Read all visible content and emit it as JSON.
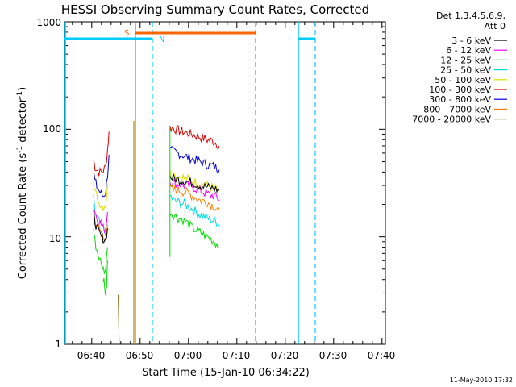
{
  "chart_data": {
    "type": "line",
    "title": "HESSI Observing Summary Count Rates, Corrected",
    "xlabel": "Start Time (15-Jan-10 06:34:22)",
    "ylabel_main": "Corrected Count Rate (s",
    "ylabel_sup1": "-1",
    "ylabel_mid": " detector",
    "ylabel_sup2": "-1",
    "ylabel_end": ")",
    "yscale": "log",
    "ylim": [
      1,
      1000
    ],
    "xlim": [
      "06:34:22",
      "07:40:40"
    ],
    "x_ticks": [
      "06:40",
      "06:50",
      "07:00",
      "07:10",
      "07:20",
      "07:30",
      "07:40"
    ],
    "y_ticks": [
      "1",
      "10",
      "100",
      "1000"
    ],
    "legend_header": [
      "Det 1,3,4,5,6,9,",
      "Att 0"
    ],
    "legend": [
      {
        "label": "3 - 6 keV",
        "color": "#000000"
      },
      {
        "label": "6 - 12 keV",
        "color": "#ff00ff"
      },
      {
        "label": "12 - 25 keV",
        "color": "#00dd00"
      },
      {
        "label": "25 - 50 keV",
        "color": "#00dddd"
      },
      {
        "label": "50 - 100 keV",
        "color": "#dddd00"
      },
      {
        "label": "100 - 300 keV",
        "color": "#dd0000"
      },
      {
        "label": "300 - 800 keV",
        "color": "#0000dd"
      },
      {
        "label": "800 - 7000 keV",
        "color": "#ff8000"
      },
      {
        "label": "7000 - 20000 keV",
        "color": "#806000"
      }
    ],
    "series": [
      {
        "color": "#dd0000",
        "seg1": [
          [
            6.0,
            52
          ],
          [
            6.3,
            45
          ],
          [
            6.7,
            42
          ],
          [
            7.1,
            40
          ],
          [
            7.6,
            40
          ],
          [
            8.0,
            41
          ],
          [
            8.5,
            45
          ],
          [
            8.9,
            65
          ],
          [
            9.2,
            95
          ]
        ],
        "seg2": [
          [
            21.8,
            104
          ],
          [
            22.5,
            102
          ],
          [
            23.5,
            98
          ],
          [
            25.0,
            93
          ],
          [
            26.5,
            89
          ],
          [
            28.0,
            85
          ],
          [
            29.5,
            80
          ],
          [
            31.0,
            77
          ],
          [
            32.0,
            70
          ]
        ]
      },
      {
        "color": "#0000dd",
        "seg1": [
          [
            6.0,
            40
          ],
          [
            6.3,
            33
          ],
          [
            6.7,
            29
          ],
          [
            7.1,
            27
          ],
          [
            7.6,
            25
          ],
          [
            8.0,
            24
          ],
          [
            8.5,
            26
          ],
          [
            8.9,
            38
          ],
          [
            9.2,
            58
          ]
        ],
        "seg2": [
          [
            21.8,
            64
          ],
          [
            22.5,
            62
          ],
          [
            23.5,
            60
          ],
          [
            25.0,
            56
          ],
          [
            26.5,
            53
          ],
          [
            28.0,
            50
          ],
          [
            29.5,
            47
          ],
          [
            31.0,
            45
          ],
          [
            32.0,
            42
          ]
        ]
      },
      {
        "color": "#dddd00",
        "seg1": [
          [
            6.0,
            34
          ],
          [
            6.3,
            27
          ],
          [
            6.7,
            23
          ],
          [
            7.1,
            21
          ],
          [
            7.6,
            20
          ],
          [
            8.0,
            19
          ],
          [
            8.5,
            20
          ],
          [
            8.9,
            30
          ]
        ],
        "seg2": [
          [
            21.8,
            40
          ],
          [
            22.5,
            38
          ],
          [
            23.5,
            37
          ],
          [
            25.0,
            35
          ],
          [
            26.5,
            33
          ],
          [
            28.0,
            31
          ],
          [
            29.5,
            30
          ],
          [
            31.0,
            28
          ],
          [
            32.0,
            27
          ]
        ]
      },
      {
        "color": "#00dddd",
        "seg1": [
          [
            6.0,
            22
          ],
          [
            6.3,
            17
          ],
          [
            6.7,
            15
          ],
          [
            7.1,
            14
          ],
          [
            7.6,
            13
          ],
          [
            8.0,
            12
          ],
          [
            8.5,
            11
          ],
          [
            8.9,
            16
          ]
        ],
        "seg2": [
          [
            21.8,
            24
          ],
          [
            22.5,
            22
          ],
          [
            23.5,
            21
          ],
          [
            25.0,
            20
          ],
          [
            26.5,
            18
          ],
          [
            28.0,
            16
          ],
          [
            29.5,
            15
          ],
          [
            31.0,
            14
          ],
          [
            32.0,
            13
          ]
        ]
      },
      {
        "color": "#ff00ff",
        "seg1": [
          [
            6.0,
            20
          ],
          [
            6.3,
            17
          ],
          [
            6.7,
            15
          ],
          [
            7.1,
            14
          ],
          [
            7.6,
            13
          ],
          [
            8.0,
            12
          ],
          [
            8.5,
            12
          ],
          [
            8.9,
            17
          ]
        ],
        "seg2": [
          [
            21.8,
            33
          ],
          [
            22.5,
            32
          ],
          [
            23.5,
            31
          ],
          [
            25.0,
            30
          ],
          [
            26.5,
            29
          ],
          [
            28.0,
            27
          ],
          [
            29.5,
            25
          ],
          [
            31.0,
            24
          ],
          [
            32.0,
            22
          ]
        ]
      },
      {
        "color": "#ff8000",
        "seg1": [
          [
            6.0,
            17
          ],
          [
            6.3,
            14
          ],
          [
            6.7,
            13
          ],
          [
            7.1,
            12
          ],
          [
            7.6,
            11
          ],
          [
            8.0,
            10
          ],
          [
            8.5,
            10
          ],
          [
            8.9,
            13
          ]
        ],
        "seg2": [
          [
            21.8,
            28
          ],
          [
            22.5,
            27
          ],
          [
            23.5,
            27
          ],
          [
            25.0,
            26
          ],
          [
            26.5,
            24
          ],
          [
            28.0,
            22
          ],
          [
            29.5,
            21
          ],
          [
            31.0,
            19
          ],
          [
            32.0,
            18
          ]
        ]
      },
      {
        "color": "#000000",
        "seg1": [
          [
            6.0,
            16
          ],
          [
            6.3,
            14
          ],
          [
            6.7,
            12
          ],
          [
            7.1,
            11
          ],
          [
            7.6,
            10
          ],
          [
            8.0,
            9.5
          ],
          [
            8.5,
            9.5
          ],
          [
            8.9,
            12
          ]
        ],
        "seg2": [
          [
            21.8,
            36
          ],
          [
            22.5,
            35
          ],
          [
            23.5,
            34
          ],
          [
            25.0,
            33
          ],
          [
            26.5,
            32
          ],
          [
            28.0,
            30
          ],
          [
            29.5,
            29
          ],
          [
            31.0,
            28
          ],
          [
            32.0,
            27
          ]
        ]
      },
      {
        "color": "#00dd00",
        "seg1": [
          [
            6.0,
            12
          ],
          [
            6.3,
            9
          ],
          [
            6.7,
            7.5
          ],
          [
            7.1,
            6.5
          ],
          [
            7.6,
            5.5
          ],
          [
            8.0,
            5
          ],
          [
            8.5,
            5
          ],
          [
            8.9,
            8
          ]
        ],
        "seg2": [
          [
            21.8,
            17
          ],
          [
            22.5,
            16
          ],
          [
            23.5,
            15
          ],
          [
            25.0,
            14
          ],
          [
            26.5,
            12
          ],
          [
            28.0,
            11
          ],
          [
            29.5,
            10
          ],
          [
            31.0,
            9
          ],
          [
            32.0,
            8
          ]
        ]
      },
      {
        "color": "#00dd00",
        "seg1": [
          [
            8.0,
            4.2
          ],
          [
            8.3,
            3.3
          ],
          [
            8.5,
            3.0
          ],
          [
            8.7,
            3.5
          ],
          [
            8.9,
            6
          ]
        ],
        "seg2": []
      },
      {
        "color": "#806000",
        "seg1": [
          [
            11.1,
            2.8
          ],
          [
            11.3,
            1.0
          ]
        ],
        "seg2": []
      }
    ],
    "markers": {
      "saa_label": "S",
      "night_label": "N"
    },
    "timestamp": "11-May-2010 17:32"
  },
  "colors": {
    "night": "#00ccff",
    "saa": "#ff6600",
    "flare": "#aa8800"
  }
}
